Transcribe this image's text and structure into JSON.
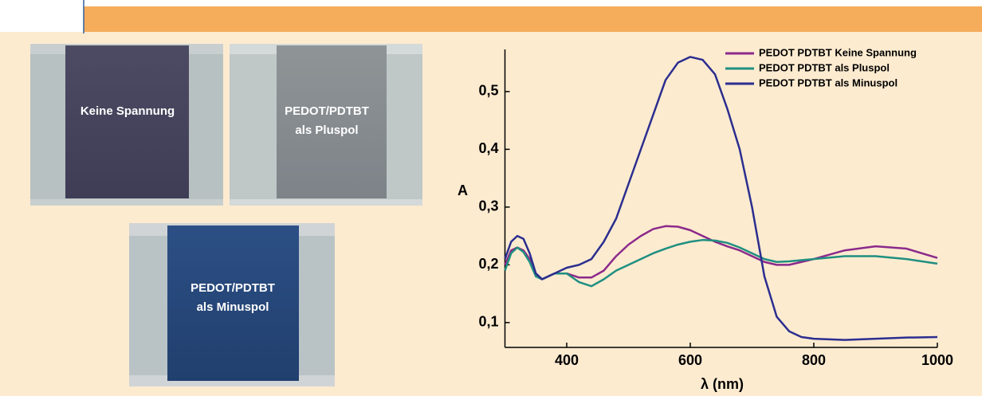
{
  "photos": [
    {
      "lines": [
        "Keine Spannung"
      ]
    },
    {
      "lines": [
        "PEDOT/PDTBT",
        "als Pluspol"
      ]
    },
    {
      "lines": [
        "PEDOT/PDTBT",
        "als Minuspol"
      ]
    }
  ],
  "chart_data": {
    "type": "line",
    "xlabel": "λ (nm)",
    "ylabel": "A",
    "x": [
      300,
      310,
      320,
      330,
      340,
      350,
      360,
      380,
      400,
      420,
      440,
      460,
      480,
      500,
      520,
      540,
      560,
      580,
      600,
      620,
      640,
      660,
      680,
      700,
      720,
      740,
      760,
      780,
      800,
      850,
      900,
      950,
      1000
    ],
    "series": [
      {
        "name": "PEDOT PDTBT Keine Spannung",
        "color": "#8b2a8b",
        "values": [
          0.2,
          0.225,
          0.23,
          0.225,
          0.21,
          0.185,
          0.175,
          0.185,
          0.185,
          0.178,
          0.178,
          0.19,
          0.215,
          0.235,
          0.25,
          0.262,
          0.267,
          0.266,
          0.26,
          0.25,
          0.24,
          0.232,
          0.225,
          0.215,
          0.205,
          0.2,
          0.2,
          0.205,
          0.21,
          0.225,
          0.232,
          0.228,
          0.212
        ]
      },
      {
        "name": "PEDOT PDTBT als Pluspol",
        "color": "#1f8f80",
        "values": [
          0.19,
          0.22,
          0.23,
          0.222,
          0.205,
          0.18,
          0.175,
          0.185,
          0.185,
          0.17,
          0.163,
          0.175,
          0.19,
          0.2,
          0.21,
          0.22,
          0.228,
          0.235,
          0.24,
          0.243,
          0.242,
          0.238,
          0.23,
          0.22,
          0.21,
          0.205,
          0.206,
          0.208,
          0.21,
          0.215,
          0.215,
          0.21,
          0.202
        ]
      },
      {
        "name": "PEDOT PDTBT als Minuspol",
        "color": "#2b2e8f",
        "values": [
          0.21,
          0.24,
          0.25,
          0.245,
          0.22,
          0.185,
          0.175,
          0.185,
          0.195,
          0.2,
          0.21,
          0.24,
          0.28,
          0.34,
          0.4,
          0.46,
          0.52,
          0.55,
          0.56,
          0.555,
          0.53,
          0.47,
          0.4,
          0.3,
          0.18,
          0.11,
          0.085,
          0.075,
          0.072,
          0.07,
          0.072,
          0.074,
          0.075
        ]
      }
    ],
    "xlim": [
      300,
      1000
    ],
    "ylim": [
      0.057,
      0.573
    ],
    "xticks": [
      400,
      600,
      800,
      1000
    ],
    "yticks": [
      {
        "value": 0.1,
        "label": "0,1"
      },
      {
        "value": 0.2,
        "label": "0,2"
      },
      {
        "value": 0.3,
        "label": "0,3"
      },
      {
        "value": 0.4,
        "label": "0,4"
      },
      {
        "value": 0.5,
        "label": "0,5"
      }
    ],
    "legend": "upper right"
  }
}
